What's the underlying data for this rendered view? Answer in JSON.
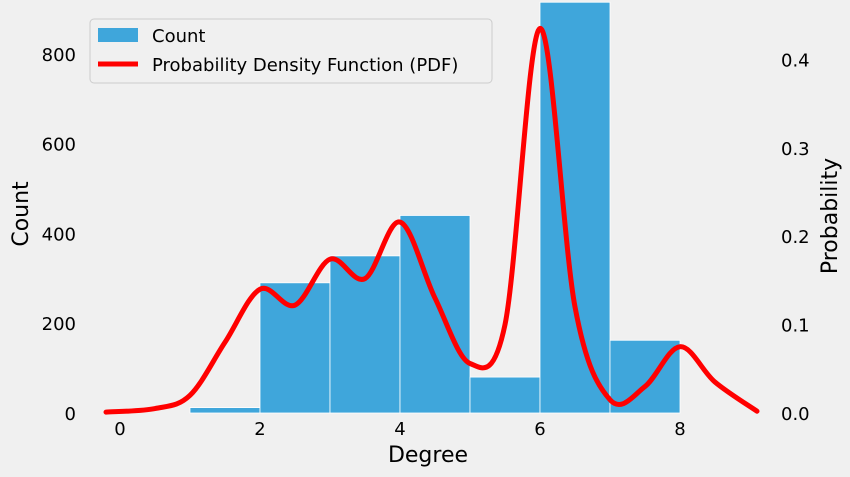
{
  "chart_data": {
    "type": "bar",
    "xlabel": "Degree",
    "ylabel": "Count",
    "ylabel_right": "Probability",
    "xlim": [
      -0.4,
      9.2
    ],
    "ylim": [
      0,
      920
    ],
    "ylim_right": [
      0,
      0.4355
    ],
    "xticks": [
      "0",
      "2",
      "4",
      "6",
      "8"
    ],
    "yticks": [
      "0",
      "200",
      "400",
      "600",
      "800"
    ],
    "yticks_right": [
      "0.0",
      "0.1",
      "0.2",
      "0.3",
      "0.4"
    ],
    "bins": [
      {
        "x0": 1,
        "x1": 2,
        "count": 12
      },
      {
        "x0": 2,
        "x1": 3,
        "count": 290
      },
      {
        "x0": 3,
        "x1": 4,
        "count": 350
      },
      {
        "x0": 4,
        "x1": 5,
        "count": 440
      },
      {
        "x0": 5,
        "x1": 6,
        "count": 80
      },
      {
        "x0": 6,
        "x1": 7,
        "count": 915
      },
      {
        "x0": 7,
        "x1": 8,
        "count": 162
      }
    ],
    "series": [
      {
        "name": "Count",
        "type": "bar",
        "color": "#3fa6db"
      },
      {
        "name": "Probability Density Function (PDF)",
        "type": "line",
        "color": "#ff0000",
        "x": [
          -0.2,
          0.5,
          1.0,
          1.5,
          2.0,
          2.5,
          3.0,
          3.5,
          4.0,
          4.5,
          5.0,
          5.5,
          6.0,
          6.5,
          7.0,
          7.5,
          8.0,
          8.5,
          9.1
        ],
        "y": [
          0.001,
          0.005,
          0.02,
          0.08,
          0.14,
          0.122,
          0.174,
          0.152,
          0.216,
          0.13,
          0.056,
          0.1,
          0.435,
          0.12,
          0.015,
          0.03,
          0.075,
          0.035,
          0.002
        ]
      }
    ],
    "legend": {
      "placement": "top-left",
      "entries": [
        "Count",
        "Probability Density Function (PDF)"
      ]
    },
    "grid": false
  }
}
